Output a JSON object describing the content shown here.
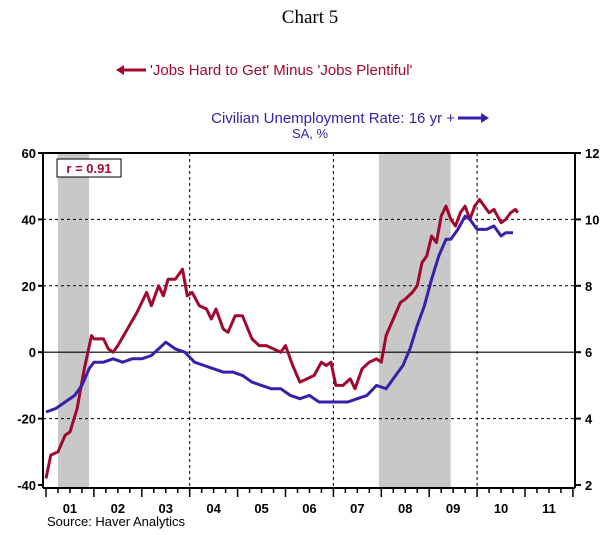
{
  "chart_data": {
    "type": "line",
    "title": "Chart 5",
    "source": "Source: Haver Analytics",
    "annotation": "r = 0.91",
    "legend": {
      "red": "'Jobs Hard to Get' Minus 'Jobs Plentiful'",
      "blue": "Civilian Unemployment Rate: 16 yr +",
      "blue_sub": "SA, %"
    },
    "colors": {
      "red": "#a0092f",
      "blue": "#3a20a8",
      "recession": "#c8c8c8"
    },
    "left_axis": {
      "ylim": [
        -40,
        60
      ],
      "ticks": [
        "-40",
        "-20",
        "0",
        "20",
        "40",
        "60"
      ]
    },
    "right_axis": {
      "ylim": [
        2,
        12
      ],
      "ticks": [
        "2",
        "4",
        "6",
        "8",
        "10",
        "12"
      ]
    },
    "x_labels": [
      "01",
      "02",
      "03",
      "04",
      "05",
      "06",
      "07",
      "08",
      "09",
      "10",
      "11"
    ],
    "xlim": [
      2001,
      2012
    ],
    "recessions": [
      [
        2001.25,
        2001.9
      ],
      [
        2007.95,
        2009.45
      ]
    ],
    "series": [
      {
        "name": "'Jobs Hard to Get' Minus 'Jobs Plentiful'",
        "axis": "left",
        "x": [
          2001.0,
          2001.1,
          2001.25,
          2001.4,
          2001.5,
          2001.65,
          2001.8,
          2001.95,
          2002.0,
          2002.2,
          2002.3,
          2002.4,
          2002.5,
          2002.7,
          2002.9,
          2003.0,
          2003.1,
          2003.2,
          2003.35,
          2003.45,
          2003.55,
          2003.7,
          2003.85,
          2003.95,
          2004.05,
          2004.2,
          2004.35,
          2004.45,
          2004.55,
          2004.7,
          2004.8,
          2004.95,
          2005.1,
          2005.3,
          2005.45,
          2005.6,
          2005.75,
          2005.9,
          2006.0,
          2006.15,
          2006.3,
          2006.45,
          2006.6,
          2006.75,
          2006.85,
          2006.95,
          2007.05,
          2007.2,
          2007.35,
          2007.45,
          2007.6,
          2007.75,
          2007.9,
          2008.0,
          2008.1,
          2008.25,
          2008.4,
          2008.5,
          2008.65,
          2008.75,
          2008.85,
          2008.95,
          2009.05,
          2009.15,
          2009.25,
          2009.35,
          2009.45,
          2009.55,
          2009.65,
          2009.75,
          2009.85,
          2009.95,
          2010.05,
          2010.15,
          2010.25,
          2010.35,
          2010.5,
          2010.6,
          2010.7,
          2010.8,
          2010.85
        ],
        "values": [
          -38,
          -31,
          -30,
          -25,
          -24,
          -17,
          -5,
          5,
          4,
          4,
          1,
          0,
          2,
          7,
          12,
          15,
          18,
          14,
          20,
          17,
          22,
          22,
          25,
          17,
          18,
          14,
          13,
          10,
          13,
          7,
          6,
          11,
          11,
          4,
          2,
          2,
          1,
          0,
          2,
          -4,
          -9,
          -8,
          -7,
          -3,
          -4,
          -3,
          -10,
          -10,
          -8,
          -11,
          -5,
          -3,
          -2,
          -3,
          5,
          10,
          15,
          16,
          18,
          20,
          27,
          29,
          35,
          33,
          41,
          44,
          40,
          38,
          42,
          44,
          40,
          44,
          46,
          44,
          42,
          43,
          39,
          40,
          42,
          43,
          42
        ]
      },
      {
        "name": "Civilian Unemployment Rate: 16 yr +",
        "axis": "right",
        "x": [
          2001.0,
          2001.2,
          2001.4,
          2001.6,
          2001.75,
          2001.9,
          2002.0,
          2002.2,
          2002.4,
          2002.6,
          2002.8,
          2003.0,
          2003.2,
          2003.35,
          2003.5,
          2003.7,
          2003.9,
          2004.1,
          2004.3,
          2004.5,
          2004.7,
          2004.9,
          2005.1,
          2005.3,
          2005.5,
          2005.7,
          2005.9,
          2006.1,
          2006.3,
          2006.5,
          2006.7,
          2006.9,
          2007.1,
          2007.3,
          2007.5,
          2007.7,
          2007.9,
          2008.1,
          2008.3,
          2008.45,
          2008.6,
          2008.75,
          2008.9,
          2009.05,
          2009.2,
          2009.35,
          2009.45,
          2009.6,
          2009.75,
          2009.85,
          2010.0,
          2010.2,
          2010.35,
          2010.5,
          2010.6,
          2010.75
        ],
        "values": [
          4.2,
          4.3,
          4.5,
          4.7,
          5.0,
          5.5,
          5.7,
          5.7,
          5.8,
          5.7,
          5.8,
          5.8,
          5.9,
          6.1,
          6.3,
          6.1,
          6.0,
          5.7,
          5.6,
          5.5,
          5.4,
          5.4,
          5.3,
          5.1,
          5.0,
          4.9,
          4.9,
          4.7,
          4.6,
          4.7,
          4.5,
          4.5,
          4.5,
          4.5,
          4.6,
          4.7,
          5.0,
          4.9,
          5.3,
          5.6,
          6.1,
          6.8,
          7.4,
          8.2,
          8.9,
          9.4,
          9.4,
          9.7,
          10.1,
          10.0,
          9.7,
          9.7,
          9.8,
          9.5,
          9.6,
          9.6
        ]
      }
    ]
  }
}
